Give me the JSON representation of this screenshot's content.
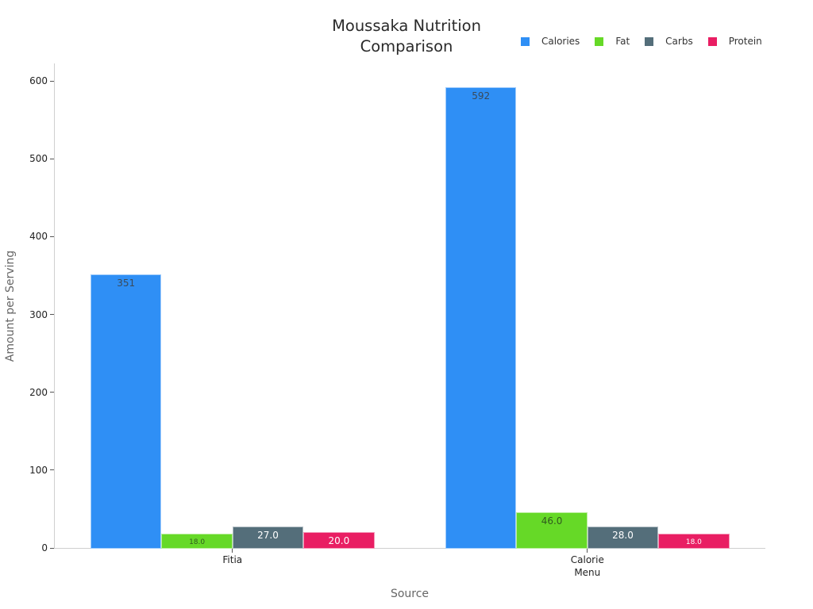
{
  "chart_data": {
    "type": "bar",
    "title": "Moussaka Nutrition Comparison",
    "title_lines": [
      "Moussaka Nutrition",
      "Comparison"
    ],
    "xlabel": "Source",
    "ylabel": "Amount per Serving",
    "categories": [
      "Fitia",
      "Calorie Menu"
    ],
    "category_lines": [
      [
        "Fitia"
      ],
      [
        "Calorie",
        "Menu"
      ]
    ],
    "series": [
      {
        "name": "Calories",
        "color": "#2f8ff5",
        "values": [
          351,
          592
        ],
        "labels": [
          "351",
          "592"
        ],
        "label_color": "#3a4a5a"
      },
      {
        "name": "Fat",
        "color": "#66d927",
        "values": [
          18,
          46
        ],
        "labels": [
          "18.0",
          "46.0"
        ],
        "label_color": "#2f5a1e"
      },
      {
        "name": "Carbs",
        "color": "#546e7a",
        "values": [
          27,
          28
        ],
        "labels": [
          "27.0",
          "28.0"
        ],
        "label_color": "#ffffff"
      },
      {
        "name": "Protein",
        "color": "#e91e63",
        "values": [
          20,
          18
        ],
        "labels": [
          "20.0",
          "18.0"
        ],
        "label_color": "#ffffff"
      }
    ],
    "yticks": [
      0,
      100,
      200,
      300,
      400,
      500,
      600
    ],
    "ylim": [
      0,
      622
    ],
    "grid": false,
    "legend_position": "top-right"
  }
}
